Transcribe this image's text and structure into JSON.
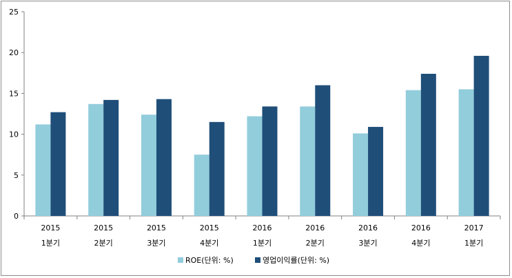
{
  "chart_data": {
    "type": "bar",
    "categories": [
      [
        "2015",
        "1분기"
      ],
      [
        "2015",
        "2분기"
      ],
      [
        "2015",
        "3분기"
      ],
      [
        "2015",
        "4분기"
      ],
      [
        "2016",
        "1분기"
      ],
      [
        "2016",
        "2분기"
      ],
      [
        "2016",
        "3분기"
      ],
      [
        "2016",
        "4분기"
      ],
      [
        "2017",
        "1분기"
      ]
    ],
    "series": [
      {
        "name": "ROE(단위: %)",
        "color": "#92cddc",
        "values": [
          11.2,
          13.7,
          12.4,
          7.5,
          12.2,
          13.4,
          10.1,
          15.4,
          15.5
        ]
      },
      {
        "name": "영업이익률(단위: %)",
        "color": "#1f4e79",
        "values": [
          12.7,
          14.2,
          14.3,
          11.5,
          13.4,
          16.0,
          10.9,
          17.4,
          19.6
        ]
      }
    ],
    "ylim": [
      0,
      25
    ],
    "yticks": [
      0,
      5,
      10,
      15,
      20,
      25
    ],
    "title": "",
    "xlabel": "",
    "ylabel": "",
    "grid": false,
    "legend_position": "bottom"
  }
}
